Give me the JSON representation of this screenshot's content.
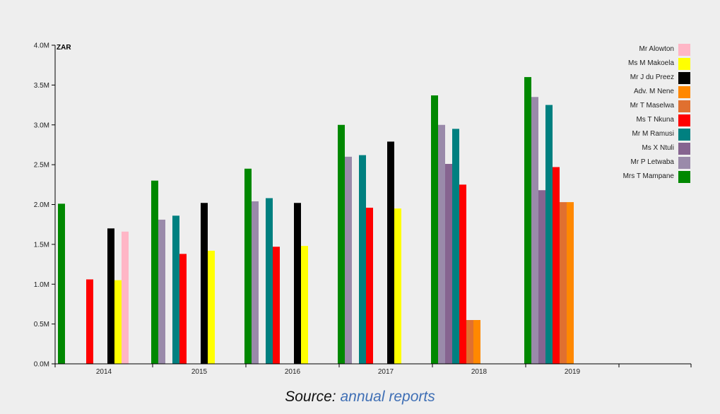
{
  "chart_data": {
    "type": "bar",
    "unit_label": "ZAR",
    "categories": [
      "2014",
      "2015",
      "2016",
      "2017",
      "2018",
      "2019"
    ],
    "y_ticks": [
      "0.0M",
      "0.5M",
      "1.0M",
      "1.5M",
      "2.0M",
      "2.5M",
      "3.0M",
      "3.5M",
      "4.0M"
    ],
    "ylim": [
      0,
      4000000
    ],
    "grid": false,
    "legend_position": "top-right",
    "series": [
      {
        "name": "Mrs T Mampane",
        "color": "#008800",
        "values": [
          2010000,
          2300000,
          2450000,
          3000000,
          3370000,
          3600000
        ]
      },
      {
        "name": "Mr P Letwaba",
        "color": "#9a8aaa",
        "values": [
          null,
          1810000,
          2040000,
          2600000,
          3000000,
          3350000
        ]
      },
      {
        "name": "Ms X Ntuli",
        "color": "#866490",
        "values": [
          null,
          null,
          null,
          null,
          2510000,
          2180000
        ]
      },
      {
        "name": "Mr M Ramusi",
        "color": "#008080",
        "values": [
          null,
          1860000,
          2080000,
          2620000,
          2950000,
          3250000
        ]
      },
      {
        "name": "Ms T Nkuna",
        "color": "#ff0000",
        "values": [
          1060000,
          1380000,
          1470000,
          1960000,
          2250000,
          2470000
        ]
      },
      {
        "name": "Mr T Maselwa",
        "color": "#e07030",
        "values": [
          null,
          null,
          null,
          null,
          550000,
          2030000
        ]
      },
      {
        "name": "Adv. M Nene",
        "color": "#ff8800",
        "values": [
          null,
          null,
          null,
          null,
          550000,
          2030000
        ]
      },
      {
        "name": "Mr J du Preez",
        "color": "#000000",
        "values": [
          1700000,
          2020000,
          2020000,
          2790000,
          null,
          null
        ]
      },
      {
        "name": "Ms M Makoela",
        "color": "#ffff00",
        "values": [
          1050000,
          1420000,
          1480000,
          1950000,
          null,
          null
        ]
      },
      {
        "name": "Mr Alowton",
        "color": "#ffb6c6",
        "values": [
          1660000,
          null,
          null,
          null,
          null,
          null
        ]
      }
    ],
    "legend_order": [
      "Mr Alowton",
      "Ms M Makoela",
      "Mr J du Preez",
      "Adv. M Nene",
      "Mr T Maselwa",
      "Ms T Nkuna",
      "Mr M Ramusi",
      "Ms X Ntuli",
      "Mr P Letwaba",
      "Mrs T Mampane"
    ]
  },
  "source": {
    "prefix": "Source:",
    "link_text": "annual reports"
  }
}
